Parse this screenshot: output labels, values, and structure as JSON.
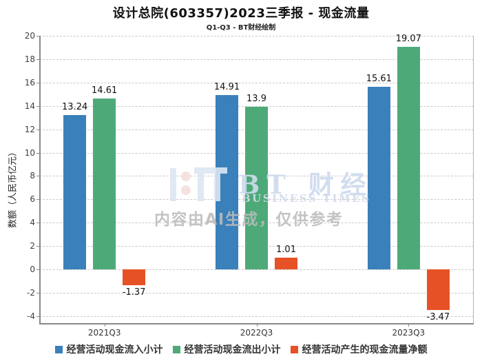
{
  "chart_data": {
    "type": "bar",
    "title": "设计总院(603357)2023三季报 - 现金流量",
    "subtitle": "Q1-Q3 - BT财经绘制",
    "ylabel": "数额（人民币亿元）",
    "xlabel": "",
    "categories": [
      "2021Q3",
      "2022Q3",
      "2023Q3"
    ],
    "series": [
      {
        "name": "经营活动现金流入小计",
        "color": "#3a80bb",
        "values": [
          13.24,
          14.91,
          15.61
        ]
      },
      {
        "name": "经营活动现金流出小计",
        "color": "#4daa78",
        "values": [
          14.61,
          13.9,
          19.07
        ]
      },
      {
        "name": "经营活动产生的现金流量净额",
        "color": "#e65126",
        "values": [
          -1.37,
          1.01,
          -3.47
        ]
      }
    ],
    "ylim": [
      -4.6,
      20
    ],
    "yticks": [
      20,
      18,
      16,
      14,
      12,
      10,
      8,
      6,
      4,
      2,
      0,
      -2,
      -4
    ],
    "grid": true,
    "grid_style": "dashed",
    "legend_position": "bottom"
  },
  "watermark": {
    "brand": "BT 财经",
    "brand_sub": "BUSINESS TIMES",
    "ai_note": "内容由AI生成，仅供参考"
  },
  "colors": {
    "inflow_bar": "#3a80bb",
    "outflow_bar": "#4daa78",
    "net_bar": "#e65126",
    "gridline": "#c9c9c9",
    "axis": "#888888"
  }
}
